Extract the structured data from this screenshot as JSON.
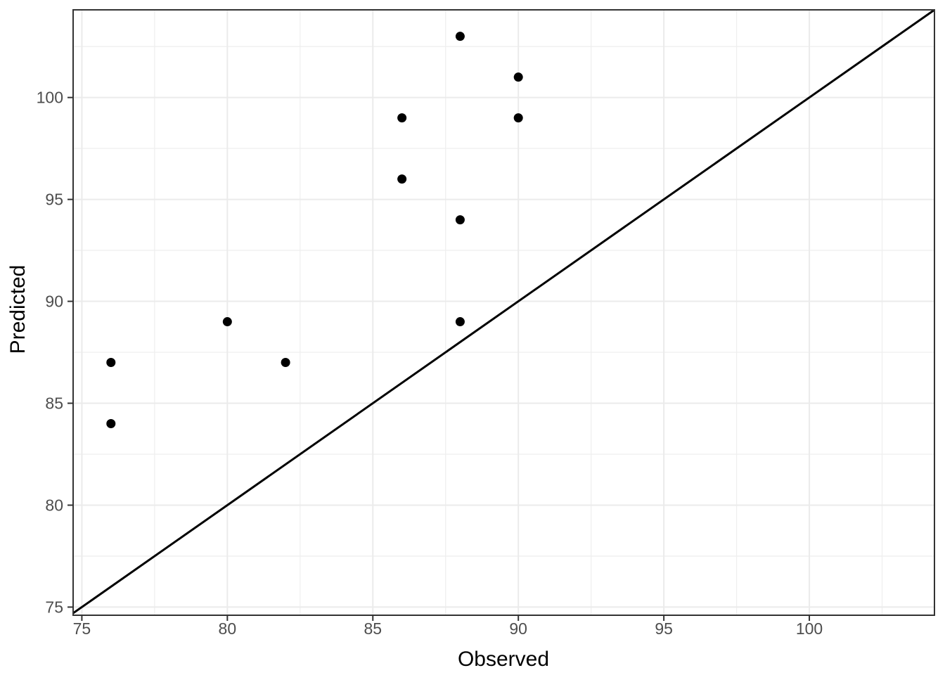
{
  "chart_data": {
    "type": "scatter",
    "title": "",
    "xlabel": "Observed",
    "ylabel": "Predicted",
    "points": [
      {
        "x": 76,
        "y": 84
      },
      {
        "x": 76,
        "y": 87
      },
      {
        "x": 80,
        "y": 89
      },
      {
        "x": 82,
        "y": 87
      },
      {
        "x": 86,
        "y": 96
      },
      {
        "x": 86,
        "y": 99
      },
      {
        "x": 88,
        "y": 89
      },
      {
        "x": 88,
        "y": 94
      },
      {
        "x": 88,
        "y": 103
      },
      {
        "x": 90,
        "y": 99
      },
      {
        "x": 90,
        "y": 101
      }
    ],
    "reference_line": {
      "slope": 1,
      "intercept": 0,
      "description": "identity line y = x"
    },
    "xlim": [
      74.7,
      104.3
    ],
    "ylim": [
      74.6,
      104.3
    ],
    "x_ticks": [
      75,
      80,
      85,
      90,
      95,
      100
    ],
    "y_ticks": [
      75,
      80,
      85,
      90,
      95,
      100
    ],
    "x_minor_ticks": [
      77.5,
      82.5,
      87.5,
      92.5,
      97.5,
      102.5
    ],
    "y_minor_ticks": [
      77.5,
      82.5,
      87.5,
      92.5,
      97.5,
      102.5
    ],
    "grid": "major and minor, light gray on white panel",
    "legend": "none",
    "colors": {
      "background": "#ffffff",
      "grid_major": "#ebebeb",
      "grid_minor": "#efefef",
      "panel_border": "#333333",
      "tick_mark": "#333333",
      "tick_label": "#4d4d4d",
      "axis_title": "#000000",
      "point": "#000000",
      "reference_line": "#000000"
    }
  }
}
